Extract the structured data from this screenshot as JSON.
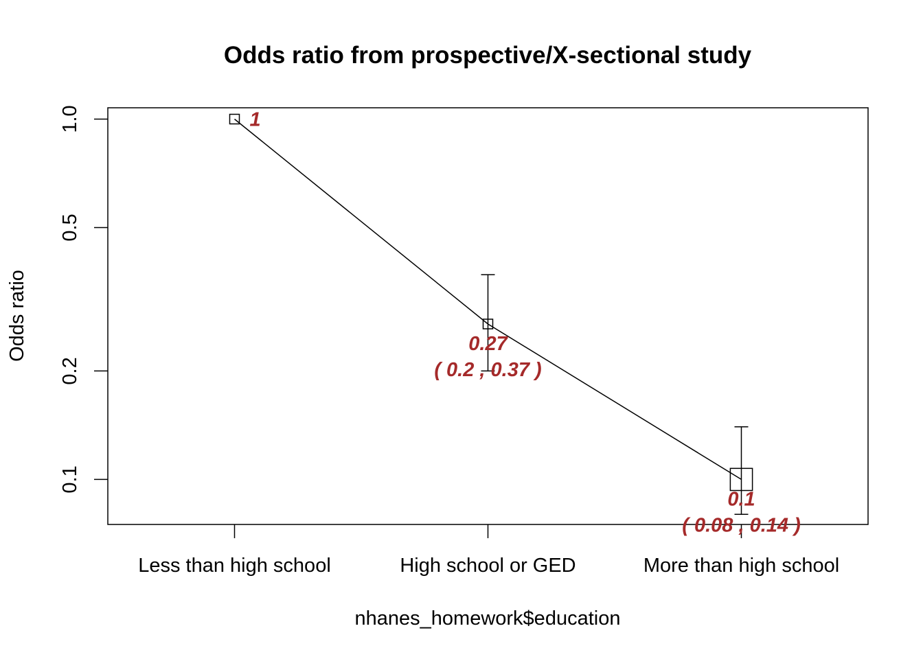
{
  "chart_data": {
    "type": "line",
    "title": "Odds ratio from prospective/X-sectional study",
    "xlabel": "nhanes_homework$education",
    "ylabel": "Odds ratio",
    "categories": [
      "Less than high school",
      "High school or GED",
      "More than high school"
    ],
    "y_scale": "log",
    "ylim": [
      0.075,
      1.075
    ],
    "y_ticks": [
      0.1,
      0.2,
      0.5,
      1.0
    ],
    "y_tick_labels": [
      "0.1",
      "0.2",
      "0.5",
      "1.0"
    ],
    "grid": false,
    "series": [
      {
        "values": [
          1,
          0.27,
          0.1
        ],
        "ci_lower": [
          null,
          0.2,
          0.08
        ],
        "ci_upper": [
          null,
          0.37,
          0.14
        ],
        "marker_relative_size": [
          1,
          1,
          2.3
        ]
      }
    ],
    "point_labels": [
      "1",
      "0.27",
      "0.1"
    ],
    "ci_labels": [
      "",
      "( 0.2 , 0.37 )",
      "( 0.08 , 0.14 )"
    ],
    "label_color": "#A52A2A"
  }
}
